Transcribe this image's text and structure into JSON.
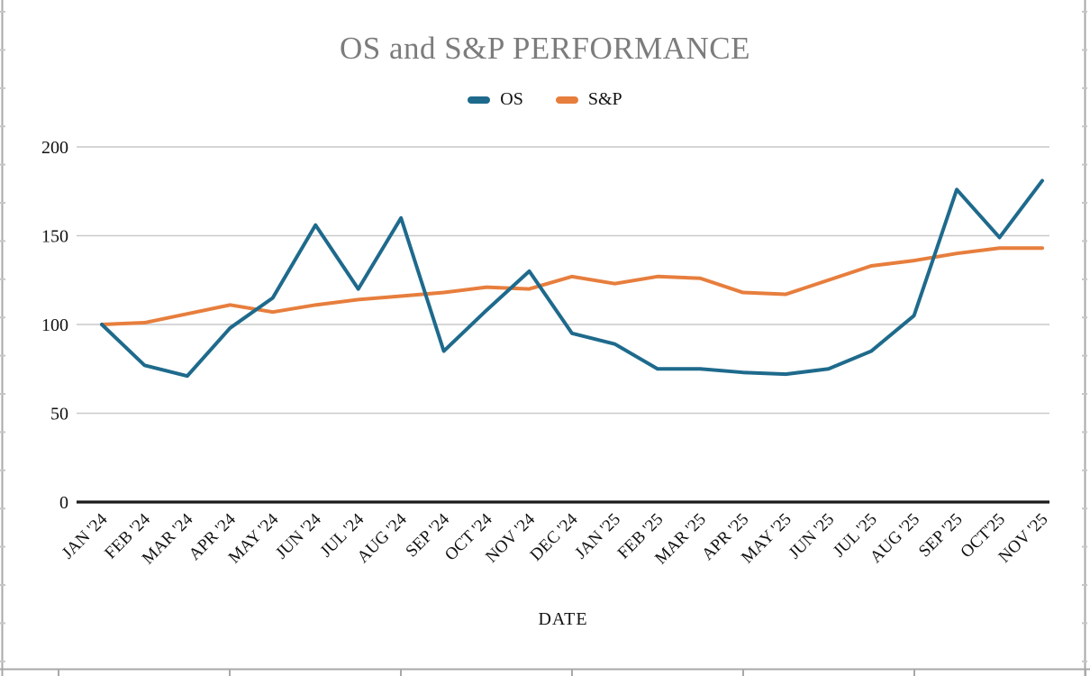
{
  "chart_data": {
    "type": "line",
    "title": "OS and S&P PERFORMANCE",
    "xlabel": "DATE",
    "ylabel": "",
    "categories": [
      "JAN '24",
      "FEB '24",
      "MAR '24",
      "APR '24",
      "MAY '24",
      "JUN '24",
      "JUL '24",
      "AUG '24",
      "SEP '24",
      "OCT '24",
      "NOV '24",
      "DEC '24",
      "JAN '25",
      "FEB '25",
      "MAR '25",
      "APR '25",
      "MAY '25",
      "JUN '25",
      "JUL '25",
      "AUG '25",
      "SEP '25",
      "OCT'25",
      "NOV '25"
    ],
    "series": [
      {
        "name": "OS",
        "color": "#1e6a8c",
        "values": [
          100,
          77,
          71,
          98,
          115,
          156,
          120,
          160,
          85,
          108,
          130,
          95,
          89,
          75,
          75,
          73,
          72,
          75,
          85,
          105,
          176,
          149,
          181
        ]
      },
      {
        "name": "S&P",
        "color": "#e77e3d",
        "values": [
          100,
          101,
          106,
          111,
          107,
          111,
          114,
          116,
          118,
          121,
          120,
          127,
          123,
          127,
          126,
          118,
          117,
          125,
          133,
          136,
          140,
          143,
          143
        ]
      }
    ],
    "y_ticks": [
      0,
      50,
      100,
      150,
      200
    ],
    "ylim": [
      0,
      200
    ],
    "grid": true,
    "legend_position": "top-center"
  },
  "style_colors": {
    "title_text": "#7c7c7c",
    "gridline": "#c9c9c9",
    "axis_line": "#1b1b1b",
    "label_text": "#111111",
    "sheet_line": "#a8a8a8",
    "sheet_tick": "#c6c6c6"
  }
}
